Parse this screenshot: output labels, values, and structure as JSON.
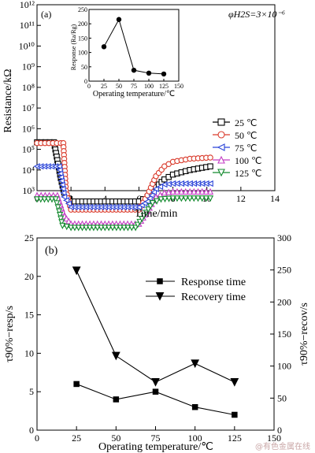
{
  "watermark": "@有色金属在线",
  "chart_data": [
    {
      "id": "a",
      "type": "line",
      "panel_label": "(a)",
      "annotation": "φH2S=3×10⁻⁶",
      "xlabel": "Time/min",
      "ylabel": "Resistance/kΩ",
      "xlim": [
        0,
        14
      ],
      "ylim_log10": [
        3,
        12
      ],
      "yscale": "log",
      "x_ticks": [
        "0",
        "2",
        "4",
        "6",
        "8",
        "10",
        "12",
        "14"
      ],
      "y_ticks": [
        "10³",
        "10⁴",
        "10⁵",
        "10⁶",
        "10⁷",
        "10⁸",
        "10⁹",
        "10¹⁰",
        "10¹¹",
        "10¹²"
      ],
      "legend_position": "right",
      "series": [
        {
          "name": "25 ℃",
          "marker": "square",
          "color": "#000000",
          "x": [
            0,
            1.0,
            1.2,
            1.4,
            1.6,
            2.0,
            4.0,
            6.0,
            6.5,
            7.0,
            7.5,
            8.0,
            9.0,
            10.2
          ],
          "y": [
            220000,
            220000,
            30000,
            4000,
            800,
            300,
            300,
            300,
            500,
            1500,
            3500,
            6000,
            10000,
            15000
          ]
        },
        {
          "name": "50 ℃",
          "marker": "circle",
          "color": "#d93a2b",
          "x": [
            0,
            1.4,
            1.55,
            1.7,
            2.0,
            4.0,
            6.0,
            6.5,
            7.0,
            7.5,
            8.0,
            9.0,
            10.2
          ],
          "y": [
            200000,
            200000,
            200000,
            1000,
            120,
            120,
            120,
            600,
            5000,
            15000,
            25000,
            35000,
            40000
          ]
        },
        {
          "name": "75 ℃",
          "marker": "triangle-left",
          "color": "#2b45d9",
          "x": [
            0,
            1.3,
            1.45,
            1.6,
            2.0,
            4.0,
            6.0,
            6.5,
            7.0,
            7.5,
            8.0,
            9.0,
            10.2
          ],
          "y": [
            15000,
            15000,
            3000,
            500,
            160,
            160,
            160,
            300,
            1200,
            2000,
            2200,
            2200,
            2200
          ]
        },
        {
          "name": "100 ℃",
          "marker": "triangle-up",
          "color": "#c43fc4",
          "x": [
            0,
            1.2,
            1.4,
            1.6,
            2.0,
            4.0,
            6.0,
            6.5,
            7.0,
            7.5,
            8.0,
            9.0,
            10.2
          ],
          "y": [
            600,
            600,
            200,
            60,
            25,
            25,
            25,
            100,
            500,
            800,
            900,
            900,
            900
          ]
        },
        {
          "name": "125 ℃",
          "marker": "triangle-down",
          "color": "#138a2e",
          "x": [
            0,
            1.1,
            1.3,
            1.5,
            2.0,
            4.0,
            5.8,
            6.3,
            6.8,
            7.3,
            8.0,
            9.0,
            10.2
          ],
          "y": [
            380,
            380,
            100,
            20,
            16,
            16,
            16,
            60,
            250,
            380,
            420,
            420,
            420
          ]
        }
      ],
      "inset": {
        "type": "line",
        "xlabel": "Operating temperature/℃",
        "ylabel": "Response (Ra/Rg)",
        "xlim": [
          0,
          150
        ],
        "ylim": [
          0,
          250
        ],
        "x_ticks": [
          "0",
          "25",
          "50",
          "75",
          "100",
          "125",
          "150"
        ],
        "y_ticks": [
          "0",
          "50",
          "100",
          "150",
          "200",
          "250"
        ],
        "x": [
          25,
          50,
          75,
          100,
          125
        ],
        "y": [
          120,
          215,
          38,
          28,
          25
        ]
      }
    },
    {
      "id": "b",
      "type": "line",
      "panel_label": "(b)",
      "xlabel": "Operating temperature/℃",
      "ylabel_left": "τ90%−resp/s",
      "ylabel_right": "τ90%−recov/s",
      "xlim": [
        0,
        150
      ],
      "ylim_left": [
        0,
        25
      ],
      "ylim_right": [
        0,
        300
      ],
      "x_ticks": [
        "0",
        "25",
        "50",
        "75",
        "100",
        "125",
        "150"
      ],
      "y_ticks_left": [
        "0",
        "5",
        "10",
        "15",
        "20",
        "25"
      ],
      "y_ticks_right": [
        "0",
        "50",
        "100",
        "150",
        "200",
        "250",
        "300"
      ],
      "legend_position": "top-right",
      "series": [
        {
          "name": "Response time",
          "axis": "left",
          "marker": "square",
          "x": [
            25,
            50,
            75,
            100,
            125
          ],
          "y": [
            6,
            4,
            5,
            3,
            2
          ]
        },
        {
          "name": "Recovery time",
          "axis": "right",
          "marker": "triangle-down",
          "x": [
            25,
            50,
            75,
            100,
            125
          ],
          "y": [
            249,
            116,
            75,
            104,
            75
          ]
        }
      ]
    }
  ]
}
